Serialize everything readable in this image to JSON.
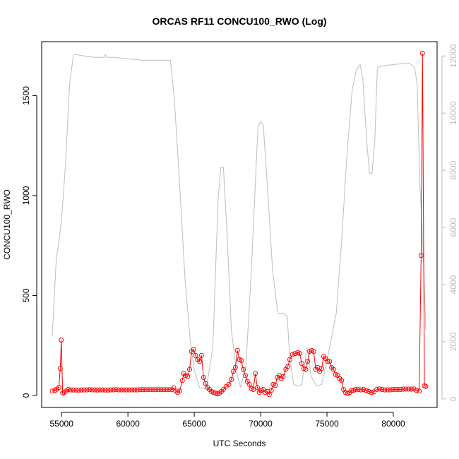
{
  "chart_data": {
    "type": "line",
    "title": "ORCAS RF11 CONCU100_RWO (Log)",
    "xlabel": "UTC Seconds",
    "ylabel": "CONCU100_RWO",
    "xlim": [
      53500,
      83300
    ],
    "ylim": [
      -60,
      1770
    ],
    "y2lim": [
      -300,
      12500
    ],
    "x_ticks": [
      55000,
      60000,
      65000,
      70000,
      75000,
      80000
    ],
    "y_ticks": [
      0,
      500,
      1000,
      1500
    ],
    "y2_ticks": [
      0,
      2000,
      4000,
      6000,
      8000,
      10000,
      12000
    ],
    "colors": {
      "primary": "#ff0000",
      "secondary": "#bebebe",
      "axis": "#000000",
      "secondary_axis_text": "#bdbdbd"
    },
    "series": [
      {
        "axis": "left",
        "style": "line+open-circles",
        "color": "#ff0000",
        "points": [
          [
            54300,
            22
          ],
          [
            54500,
            25
          ],
          [
            54650,
            32
          ],
          [
            54800,
            40
          ],
          [
            54900,
            135
          ],
          [
            54980,
            277
          ],
          [
            55080,
            12
          ],
          [
            55200,
            15
          ],
          [
            55350,
            22
          ],
          [
            55500,
            30
          ],
          [
            55700,
            28
          ],
          [
            55900,
            27
          ],
          [
            56100,
            27
          ],
          [
            56300,
            27
          ],
          [
            56500,
            27
          ],
          [
            56700,
            28
          ],
          [
            56900,
            28
          ],
          [
            57100,
            29
          ],
          [
            57300,
            28
          ],
          [
            57500,
            28
          ],
          [
            57700,
            27
          ],
          [
            57900,
            28
          ],
          [
            58100,
            28
          ],
          [
            58300,
            27
          ],
          [
            58500,
            27
          ],
          [
            58700,
            28
          ],
          [
            58900,
            28
          ],
          [
            59100,
            29
          ],
          [
            59300,
            28
          ],
          [
            59500,
            28
          ],
          [
            59700,
            28
          ],
          [
            59900,
            28
          ],
          [
            60100,
            28
          ],
          [
            60300,
            28
          ],
          [
            60500,
            28
          ],
          [
            60700,
            28
          ],
          [
            60900,
            29
          ],
          [
            61100,
            29
          ],
          [
            61300,
            29
          ],
          [
            61500,
            29
          ],
          [
            61700,
            29
          ],
          [
            61900,
            29
          ],
          [
            62100,
            29
          ],
          [
            62300,
            29
          ],
          [
            62500,
            29
          ],
          [
            62700,
            29
          ],
          [
            62900,
            29
          ],
          [
            63100,
            29
          ],
          [
            63300,
            29
          ],
          [
            63450,
            38
          ],
          [
            63600,
            22
          ],
          [
            63750,
            15
          ],
          [
            63900,
            22
          ],
          [
            64100,
            75
          ],
          [
            64200,
            110
          ],
          [
            64350,
            100
          ],
          [
            64500,
            95
          ],
          [
            64650,
            130
          ],
          [
            64800,
            220
          ],
          [
            64950,
            230
          ],
          [
            65100,
            200
          ],
          [
            65250,
            180
          ],
          [
            65400,
            170
          ],
          [
            65550,
            200
          ],
          [
            65700,
            90
          ],
          [
            65850,
            60
          ],
          [
            66000,
            40
          ],
          [
            66150,
            30
          ],
          [
            66300,
            20
          ],
          [
            66450,
            15
          ],
          [
            66600,
            12
          ],
          [
            66750,
            8
          ],
          [
            66900,
            12
          ],
          [
            67050,
            20
          ],
          [
            67200,
            30
          ],
          [
            67400,
            45
          ],
          [
            67600,
            55
          ],
          [
            67800,
            80
          ],
          [
            67950,
            120
          ],
          [
            68100,
            140
          ],
          [
            68250,
            225
          ],
          [
            68400,
            180
          ],
          [
            68550,
            175
          ],
          [
            68700,
            130
          ],
          [
            68850,
            100
          ],
          [
            69000,
            70
          ],
          [
            69150,
            55
          ],
          [
            69300,
            35
          ],
          [
            69450,
            30
          ],
          [
            69600,
            110
          ],
          [
            69750,
            40
          ],
          [
            69900,
            15
          ],
          [
            70050,
            25
          ],
          [
            70200,
            30
          ],
          [
            70350,
            15
          ],
          [
            70500,
            20
          ],
          [
            70650,
            5
          ],
          [
            70800,
            25
          ],
          [
            70950,
            55
          ],
          [
            71100,
            50
          ],
          [
            71250,
            90
          ],
          [
            71400,
            100
          ],
          [
            71550,
            85
          ],
          [
            71700,
            95
          ],
          [
            71900,
            130
          ],
          [
            72050,
            145
          ],
          [
            72200,
            180
          ],
          [
            72400,
            205
          ],
          [
            72600,
            210
          ],
          [
            72800,
            215
          ],
          [
            72950,
            210
          ],
          [
            73100,
            160
          ],
          [
            73250,
            135
          ],
          [
            73400,
            130
          ],
          [
            73550,
            170
          ],
          [
            73700,
            220
          ],
          [
            73850,
            225
          ],
          [
            74000,
            220
          ],
          [
            74150,
            130
          ],
          [
            74300,
            140
          ],
          [
            74450,
            120
          ],
          [
            74600,
            135
          ],
          [
            74750,
            195
          ],
          [
            74900,
            185
          ],
          [
            75050,
            170
          ],
          [
            75200,
            170
          ],
          [
            75350,
            140
          ],
          [
            75500,
            130
          ],
          [
            75650,
            105
          ],
          [
            75800,
            100
          ],
          [
            75950,
            85
          ],
          [
            76100,
            75
          ],
          [
            76250,
            30
          ],
          [
            76400,
            15
          ],
          [
            76550,
            10
          ],
          [
            76700,
            15
          ],
          [
            76850,
            25
          ],
          [
            77000,
            25
          ],
          [
            77150,
            30
          ],
          [
            77350,
            30
          ],
          [
            77550,
            28
          ],
          [
            77750,
            30
          ],
          [
            77950,
            25
          ],
          [
            78150,
            20
          ],
          [
            78350,
            15
          ],
          [
            78550,
            18
          ],
          [
            78750,
            30
          ],
          [
            78950,
            33
          ],
          [
            79150,
            30
          ],
          [
            79350,
            28
          ],
          [
            79550,
            28
          ],
          [
            79750,
            28
          ],
          [
            79950,
            30
          ],
          [
            80150,
            30
          ],
          [
            80350,
            30
          ],
          [
            80550,
            30
          ],
          [
            80750,
            32
          ],
          [
            80950,
            32
          ],
          [
            81150,
            32
          ],
          [
            81350,
            32
          ],
          [
            81550,
            33
          ],
          [
            81750,
            25
          ],
          [
            81950,
            22
          ],
          [
            82100,
            700
          ],
          [
            82200,
            1712
          ],
          [
            82350,
            48
          ],
          [
            82450,
            45
          ]
        ]
      },
      {
        "axis": "right",
        "style": "line",
        "color": "#bebebe",
        "points": [
          [
            54300,
            2200
          ],
          [
            54600,
            4900
          ],
          [
            54800,
            5500
          ],
          [
            55000,
            6300
          ],
          [
            55300,
            8200
          ],
          [
            55600,
            11000
          ],
          [
            55900,
            12050
          ],
          [
            56100,
            12050
          ],
          [
            56700,
            12000
          ],
          [
            57500,
            11950
          ],
          [
            58200,
            11950
          ],
          [
            58300,
            12050
          ],
          [
            58400,
            11950
          ],
          [
            59000,
            11950
          ],
          [
            60000,
            11900
          ],
          [
            61000,
            11850
          ],
          [
            62000,
            11850
          ],
          [
            63200,
            11850
          ],
          [
            63500,
            10500
          ],
          [
            63900,
            7500
          ],
          [
            64300,
            4200
          ],
          [
            64700,
            2000
          ],
          [
            65000,
            1000
          ],
          [
            65400,
            400
          ],
          [
            65900,
            350
          ],
          [
            66400,
            1800
          ],
          [
            66800,
            7000
          ],
          [
            67000,
            8100
          ],
          [
            67200,
            8100
          ],
          [
            67500,
            5500
          ],
          [
            67800,
            2400
          ],
          [
            68200,
            900
          ],
          [
            68500,
            400
          ],
          [
            68900,
            1200
          ],
          [
            69300,
            4500
          ],
          [
            69800,
            9500
          ],
          [
            70000,
            9700
          ],
          [
            70200,
            9600
          ],
          [
            70500,
            7500
          ],
          [
            70900,
            4500
          ],
          [
            71300,
            3000
          ],
          [
            71700,
            3000
          ],
          [
            72000,
            2900
          ],
          [
            72200,
            1400
          ],
          [
            72500,
            500
          ],
          [
            72800,
            450
          ],
          [
            73100,
            500
          ],
          [
            73500,
            1800
          ],
          [
            73800,
            800
          ],
          [
            74200,
            450
          ],
          [
            74600,
            500
          ],
          [
            75200,
            1800
          ],
          [
            75700,
            3000
          ],
          [
            76100,
            5500
          ],
          [
            76500,
            8500
          ],
          [
            76900,
            10800
          ],
          [
            77200,
            11500
          ],
          [
            77500,
            11700
          ],
          [
            77700,
            11200
          ],
          [
            78000,
            9000
          ],
          [
            78200,
            7900
          ],
          [
            78400,
            7900
          ],
          [
            78600,
            9000
          ],
          [
            78800,
            11600
          ],
          [
            79200,
            11650
          ],
          [
            80000,
            11700
          ],
          [
            81200,
            11750
          ],
          [
            81600,
            11600
          ],
          [
            81800,
            11000
          ],
          [
            82000,
            7500
          ],
          [
            82150,
            6200
          ],
          [
            82300,
            4500
          ],
          [
            82450,
            2400
          ]
        ]
      }
    ]
  }
}
